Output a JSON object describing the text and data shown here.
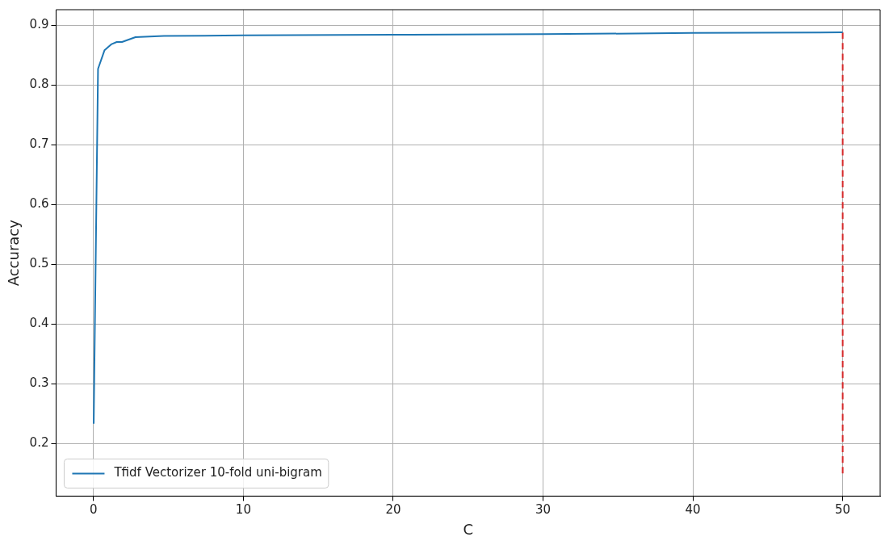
{
  "chart_data": {
    "type": "line",
    "xlabel": "C",
    "ylabel": "Accuracy",
    "xlim": [
      -2.5,
      52.5
    ],
    "xticks": [
      0,
      10,
      20,
      30,
      40,
      50
    ],
    "ylim": [
      0.112,
      0.926
    ],
    "yticks": [
      0.2,
      0.3,
      0.4,
      0.5,
      0.6,
      0.7,
      0.8,
      0.9
    ],
    "grid": true,
    "legend": "bottom left",
    "marker": "none",
    "series": [
      {
        "name": "Tfidf Vectorizer 10-fold uni-bigram",
        "color": "#1f77b4",
        "line_style": "solid",
        "x": [
          0.01,
          0.3,
          0.73,
          1.18,
          1.55,
          1.9,
          2.8,
          4.7,
          10,
          20,
          30,
          40,
          50
        ],
        "values": [
          0.233,
          0.827,
          0.858,
          0.868,
          0.872,
          0.872,
          0.88,
          0.882,
          0.883,
          0.884,
          0.885,
          0.887,
          0.888
        ]
      },
      {
        "color": "#d62728",
        "line_style": "dashed",
        "x": [
          50,
          50
        ],
        "values": [
          0.15,
          0.888
        ]
      }
    ]
  }
}
